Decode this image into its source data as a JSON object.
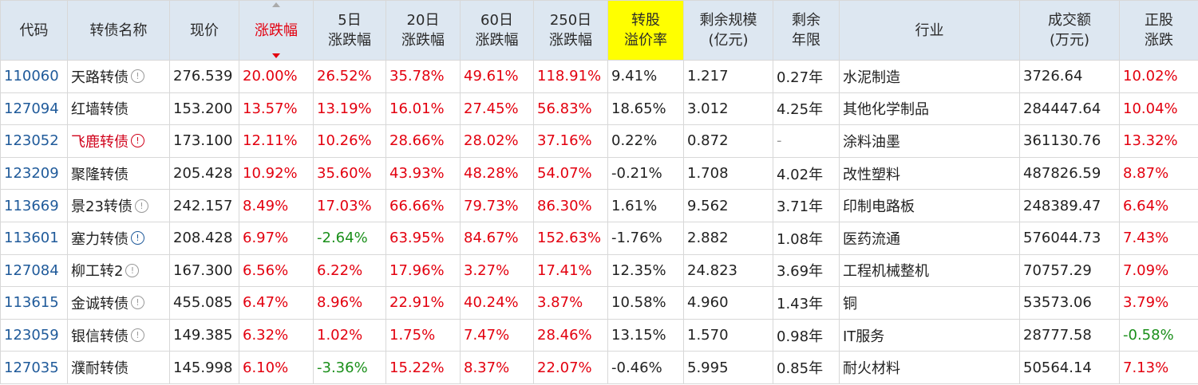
{
  "headers": [
    "代码",
    "转债名称",
    "现价",
    "涨跌幅",
    "5日\n涨跌幅",
    "20日\n涨跌幅",
    "60日\n涨跌幅",
    "250日\n涨跌幅",
    "转股\n溢价率",
    "剩余规模\n(亿元)",
    "剩余\n年限",
    "行业",
    "成交额\n(万元)",
    "正股\n涨跌"
  ],
  "colors": {
    "up": "#e3000f",
    "down": "#1a8f1a",
    "header_bg": "#dde7f1",
    "highlight": "#ffff00",
    "code": "#1f5a9a"
  },
  "rows": [
    {
      "code": "110060",
      "name": "天路转债",
      "icon": "info-icon",
      "icon_color": "grey",
      "name_color": "normal",
      "price": "276.539",
      "chg": "20.00%",
      "chg5": "26.52%",
      "chg20": "35.78%",
      "chg60": "49.61%",
      "chg250": "118.91%",
      "premium": "9.41%",
      "scale": "1.217",
      "years": "0.27年",
      "industry": "水泥制造",
      "turnover": "3726.64",
      "stock_chg": "10.02%",
      "signs": [
        "up",
        "up",
        "up",
        "up",
        "up",
        "up"
      ]
    },
    {
      "code": "127094",
      "name": "红墙转债",
      "icon": "",
      "icon_color": "",
      "name_color": "normal",
      "price": "153.200",
      "chg": "13.57%",
      "chg5": "13.19%",
      "chg20": "16.01%",
      "chg60": "27.45%",
      "chg250": "56.83%",
      "premium": "18.65%",
      "scale": "3.012",
      "years": "4.25年",
      "industry": "其他化学制品",
      "turnover": "284447.64",
      "stock_chg": "10.04%",
      "signs": [
        "up",
        "up",
        "up",
        "up",
        "up",
        "up"
      ]
    },
    {
      "code": "123052",
      "name": "飞鹿转债",
      "icon": "warning-icon",
      "icon_color": "red",
      "name_color": "warn",
      "price": "173.100",
      "chg": "12.11%",
      "chg5": "10.26%",
      "chg20": "28.66%",
      "chg60": "28.02%",
      "chg250": "37.16%",
      "premium": "0.22%",
      "scale": "0.872",
      "years": "-",
      "industry": "涂料油墨",
      "turnover": "361130.76",
      "stock_chg": "13.32%",
      "signs": [
        "up",
        "up",
        "up",
        "up",
        "up",
        "up"
      ]
    },
    {
      "code": "123209",
      "name": "聚隆转债",
      "icon": "",
      "icon_color": "",
      "name_color": "normal",
      "price": "205.428",
      "chg": "10.92%",
      "chg5": "35.60%",
      "chg20": "43.93%",
      "chg60": "48.28%",
      "chg250": "54.07%",
      "premium": "-0.21%",
      "scale": "1.708",
      "years": "4.02年",
      "industry": "改性塑料",
      "turnover": "487826.59",
      "stock_chg": "8.87%",
      "signs": [
        "up",
        "up",
        "up",
        "up",
        "up",
        "up"
      ]
    },
    {
      "code": "113669",
      "name": "景23转债",
      "icon": "info-icon",
      "icon_color": "grey",
      "name_color": "normal",
      "price": "242.157",
      "chg": "8.49%",
      "chg5": "17.03%",
      "chg20": "66.66%",
      "chg60": "79.73%",
      "chg250": "86.30%",
      "premium": "1.61%",
      "scale": "9.562",
      "years": "3.71年",
      "industry": "印制电路板",
      "turnover": "248389.47",
      "stock_chg": "6.64%",
      "signs": [
        "up",
        "up",
        "up",
        "up",
        "up",
        "up"
      ]
    },
    {
      "code": "113601",
      "name": "塞力转债",
      "icon": "info-icon",
      "icon_color": "blue",
      "name_color": "normal",
      "price": "208.428",
      "chg": "6.97%",
      "chg5": "-2.64%",
      "chg20": "63.95%",
      "chg60": "84.67%",
      "chg250": "152.63%",
      "premium": "-1.76%",
      "scale": "2.882",
      "years": "1.08年",
      "industry": "医药流通",
      "turnover": "576044.73",
      "stock_chg": "7.43%",
      "signs": [
        "up",
        "down",
        "up",
        "up",
        "up",
        "up"
      ]
    },
    {
      "code": "127084",
      "name": "柳工转2",
      "icon": "info-icon",
      "icon_color": "grey",
      "name_color": "normal",
      "price": "167.300",
      "chg": "6.56%",
      "chg5": "6.22%",
      "chg20": "17.96%",
      "chg60": "3.27%",
      "chg250": "17.41%",
      "premium": "12.35%",
      "scale": "24.823",
      "years": "3.69年",
      "industry": "工程机械整机",
      "turnover": "70757.29",
      "stock_chg": "7.09%",
      "signs": [
        "up",
        "up",
        "up",
        "up",
        "up",
        "up"
      ]
    },
    {
      "code": "113615",
      "name": "金诚转债",
      "icon": "info-icon",
      "icon_color": "grey",
      "name_color": "normal",
      "price": "455.085",
      "chg": "6.47%",
      "chg5": "8.96%",
      "chg20": "22.91%",
      "chg60": "40.24%",
      "chg250": "3.87%",
      "premium": "10.58%",
      "scale": "4.960",
      "years": "1.43年",
      "industry": "铜",
      "turnover": "53573.06",
      "stock_chg": "3.79%",
      "signs": [
        "up",
        "up",
        "up",
        "up",
        "up",
        "up"
      ]
    },
    {
      "code": "123059",
      "name": "银信转债",
      "icon": "info-icon",
      "icon_color": "grey",
      "name_color": "normal",
      "price": "149.385",
      "chg": "6.32%",
      "chg5": "1.02%",
      "chg20": "1.75%",
      "chg60": "7.47%",
      "chg250": "28.46%",
      "premium": "13.15%",
      "scale": "1.570",
      "years": "0.98年",
      "industry": "IT服务",
      "turnover": "28777.58",
      "stock_chg": "-0.58%",
      "signs": [
        "up",
        "up",
        "up",
        "up",
        "up",
        "down"
      ]
    },
    {
      "code": "127035",
      "name": "濮耐转债",
      "icon": "",
      "icon_color": "",
      "name_color": "normal",
      "price": "145.998",
      "chg": "6.10%",
      "chg5": "-3.36%",
      "chg20": "15.22%",
      "chg60": "8.37%",
      "chg250": "22.07%",
      "premium": "-0.46%",
      "scale": "5.995",
      "years": "0.85年",
      "industry": "耐火材料",
      "turnover": "50564.14",
      "stock_chg": "7.13%",
      "signs": [
        "up",
        "down",
        "up",
        "up",
        "up",
        "up"
      ]
    }
  ]
}
